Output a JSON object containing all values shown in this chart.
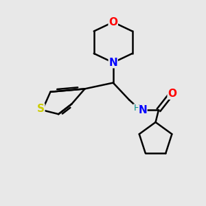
{
  "bg_color": "#e8e8e8",
  "bond_color": "#000000",
  "atom_colors": {
    "O": "#ff0000",
    "N_morph": "#0000ff",
    "S": "#cccc00",
    "NH": "#008b8b",
    "O_carbonyl": "#ff0000"
  },
  "figsize": [
    3.0,
    3.0
  ],
  "dpi": 100,
  "lw": 1.8,
  "xlim": [
    0,
    10
  ],
  "ylim": [
    0,
    10
  ]
}
